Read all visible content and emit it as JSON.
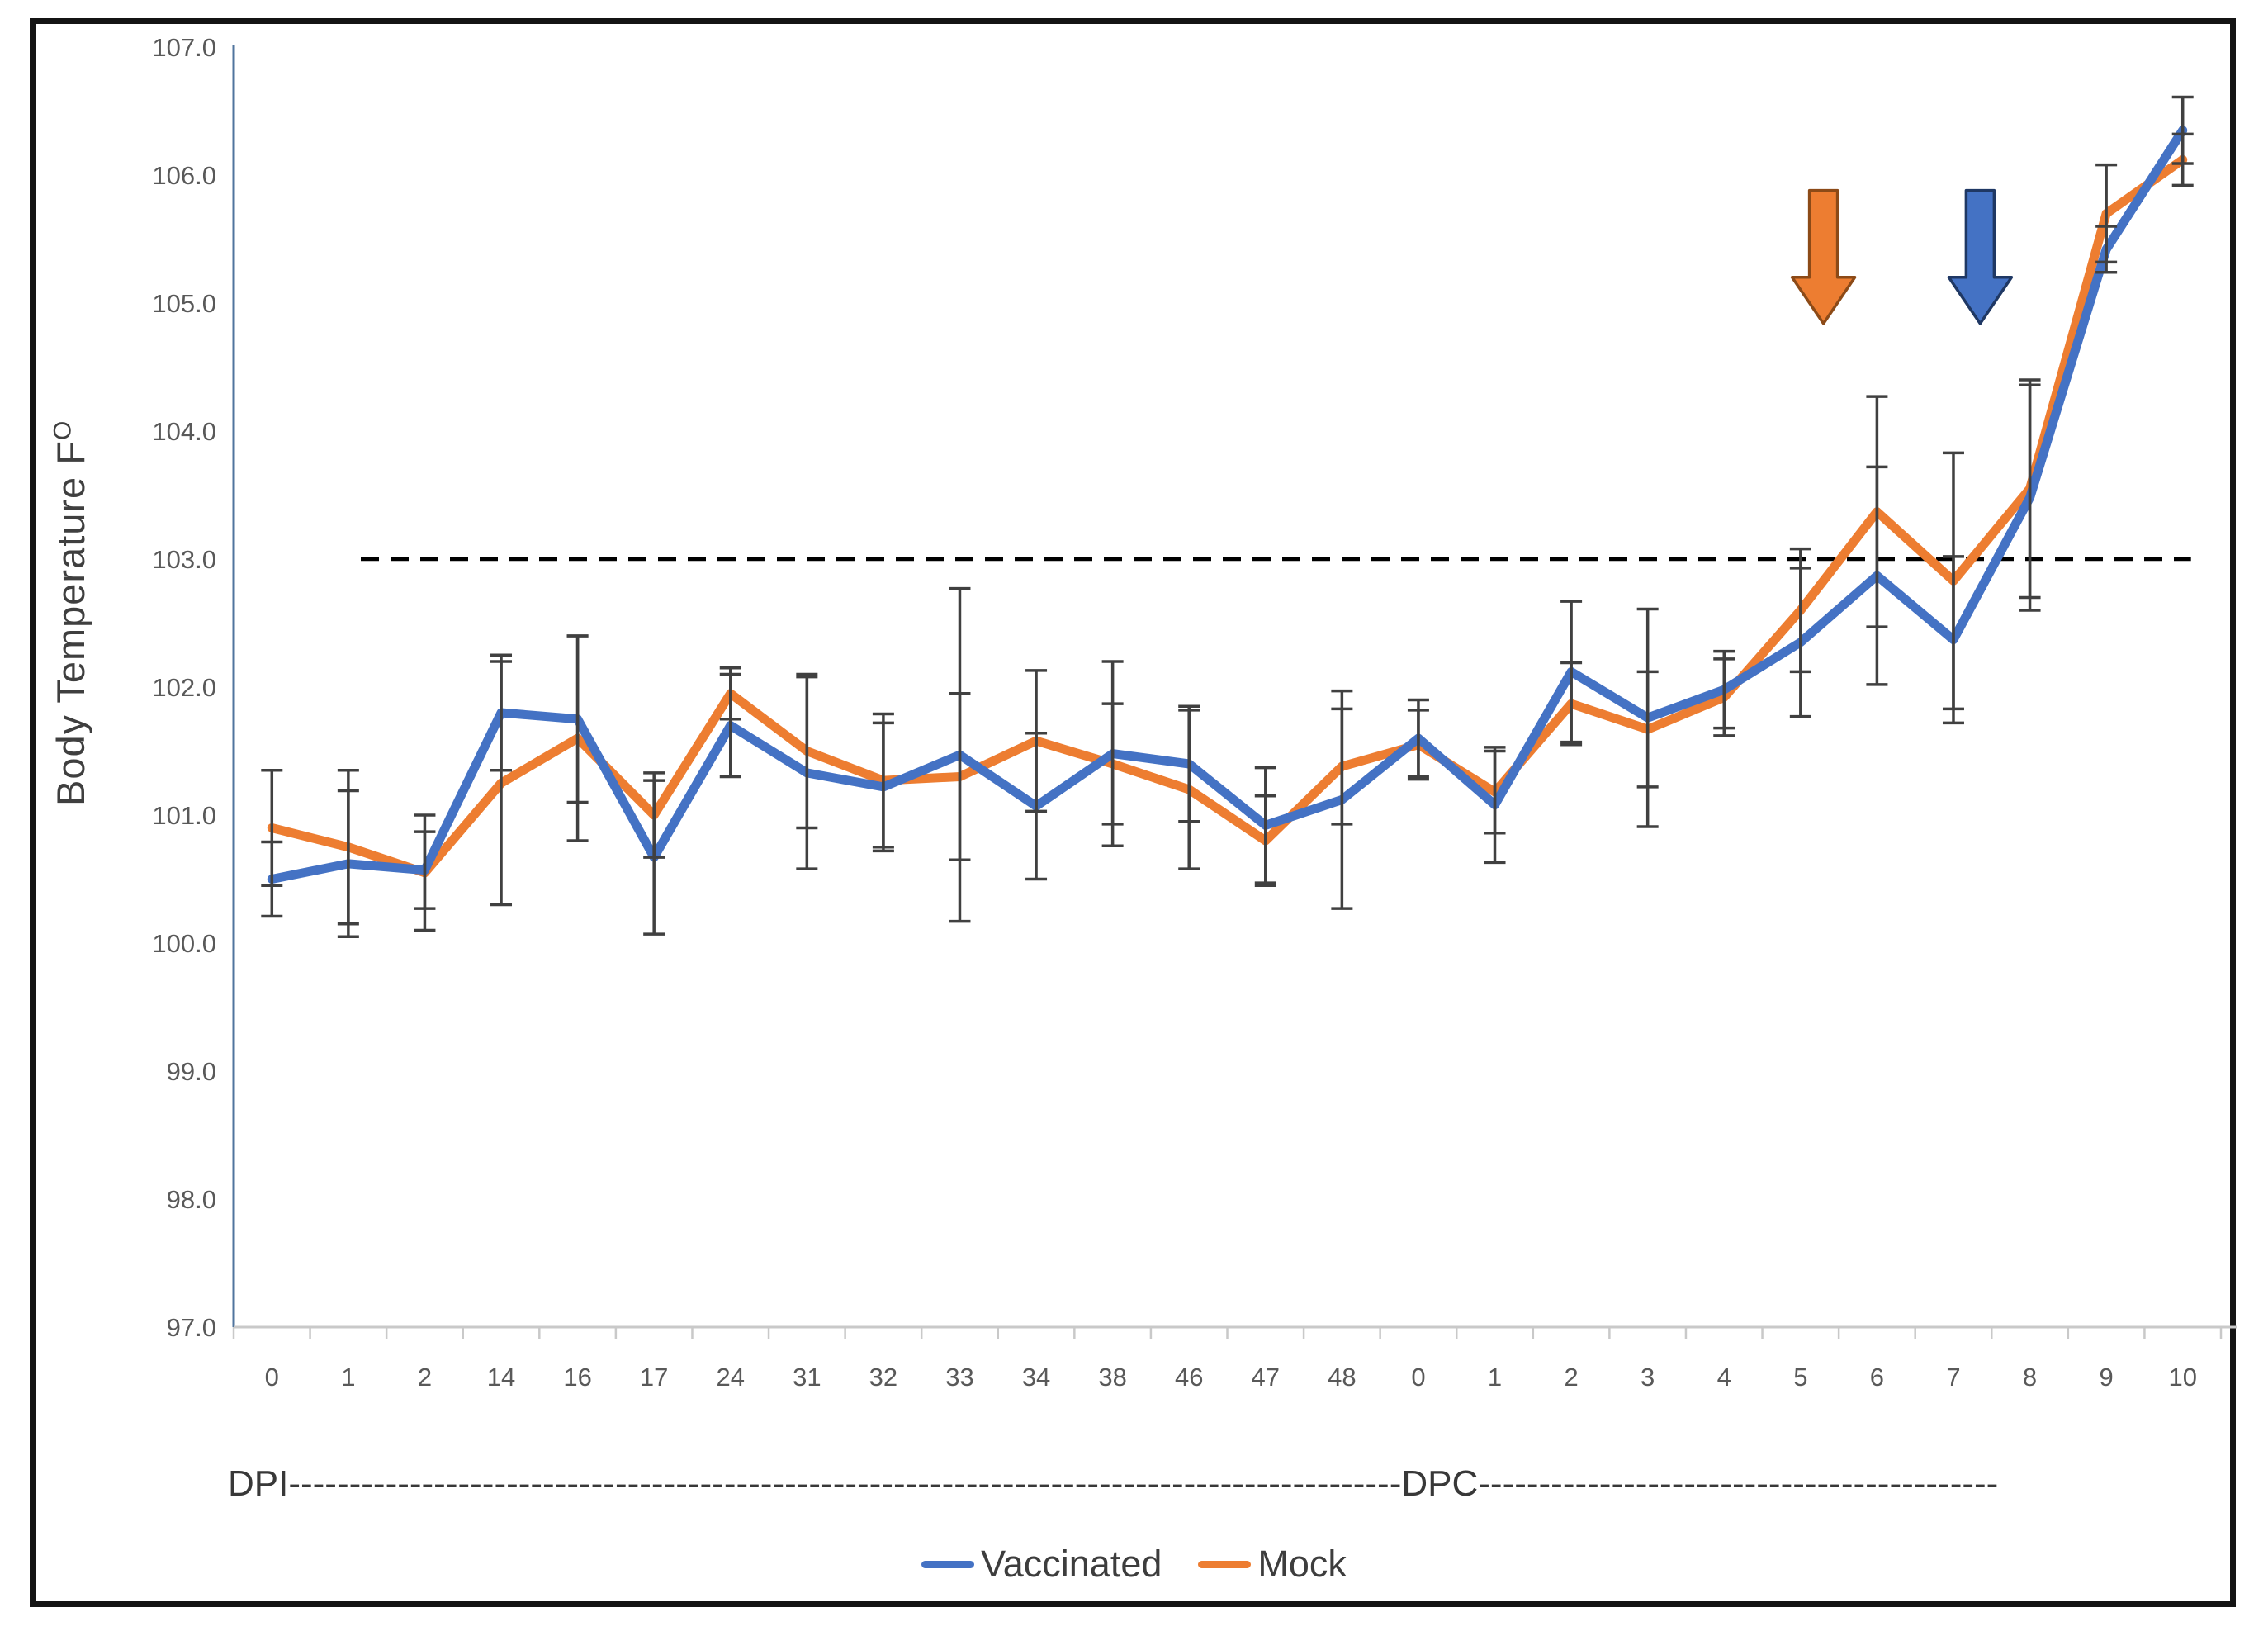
{
  "figure": {
    "background": "#ffffff",
    "border_color": "#141414"
  },
  "y_axis": {
    "title": "Body Temperature F",
    "title_superscript": "O",
    "min": 97,
    "max": 107,
    "step": 1,
    "tick_labels": [
      "97.0",
      "98.0",
      "99.0",
      "100.0",
      "101.0",
      "102.0",
      "103.0",
      "104.0",
      "105.0",
      "106.0",
      "107.0"
    ],
    "label_color": "#595959",
    "line_color": "#50749E"
  },
  "x_axis": {
    "categories": [
      "0",
      "1",
      "2",
      "14",
      "16",
      "17",
      "24",
      "31",
      "32",
      "33",
      "34",
      "38",
      "46",
      "47",
      "48",
      "0",
      "1",
      "2",
      "3",
      "4",
      "5",
      "6",
      "7",
      "8",
      "9",
      "10"
    ],
    "dpi_label": "DPI",
    "dpc_label": "DPC",
    "group_row": "DPI--------------------------------------------------------------------------------------------DPC-------------------------------------------",
    "label_color": "#595959",
    "line_color": "#C9C9C9"
  },
  "reference_line": {
    "value": 103.0,
    "color": "#000000",
    "style": "dashed"
  },
  "legend": {
    "items": [
      {
        "label": "Vaccinated",
        "color": "#4472C4"
      },
      {
        "label": "Mock",
        "color": "#ED7D31"
      }
    ]
  },
  "annotations": {
    "arrows": [
      {
        "name": "mock-fever-arrow",
        "color": "#ED7D31",
        "outline": "#8C4A17",
        "x_index": 20.3,
        "y_top_value": 105.88,
        "y_bottom_value": 104.84
      },
      {
        "name": "vaccinated-fever-arrow",
        "color": "#4472C4",
        "outline": "#1F3864",
        "x_index": 22.35,
        "y_top_value": 105.88,
        "y_bottom_value": 104.84
      }
    ]
  },
  "chart_data": {
    "type": "line",
    "title": "",
    "xlabel": "DPI / DPC",
    "ylabel": "Body Temperature F°",
    "ylim": [
      97,
      107
    ],
    "grid": false,
    "legend_position": "bottom",
    "error_bar_color": "#404040",
    "categories": [
      "0",
      "1",
      "2",
      "14",
      "16",
      "17",
      "24",
      "31",
      "32",
      "33",
      "34",
      "38",
      "46",
      "47",
      "48",
      "0",
      "1",
      "2",
      "3",
      "4",
      "5",
      "6",
      "7",
      "8",
      "9",
      "10"
    ],
    "series": [
      {
        "name": "Vaccinated",
        "color": "#4472C4",
        "values": [
          100.5,
          100.62,
          100.57,
          101.8,
          101.75,
          100.67,
          101.7,
          101.33,
          101.22,
          101.47,
          101.07,
          101.48,
          101.4,
          100.92,
          101.12,
          101.6,
          101.08,
          102.12,
          101.76,
          101.98,
          102.35,
          102.87,
          102.37,
          103.48,
          105.42,
          106.35
        ],
        "error": [
          0.29,
          0.57,
          0.3,
          0.45,
          0.65,
          0.6,
          0.4,
          0.75,
          0.5,
          1.3,
          0.57,
          0.72,
          0.45,
          0.45,
          0.85,
          0.3,
          0.45,
          0.55,
          0.85,
          0.3,
          0.58,
          0.85,
          0.65,
          0.88,
          0.18,
          0.26
        ]
      },
      {
        "name": "Mock",
        "color": "#ED7D31",
        "values": [
          100.9,
          100.75,
          100.55,
          101.25,
          101.6,
          101.0,
          101.95,
          101.5,
          101.27,
          101.3,
          101.58,
          101.4,
          101.2,
          100.8,
          101.38,
          101.55,
          101.18,
          101.87,
          101.67,
          101.92,
          102.6,
          103.37,
          102.83,
          103.55,
          105.7,
          106.12
        ],
        "error": [
          0.45,
          0.6,
          0.45,
          0.95,
          0.8,
          0.33,
          0.2,
          0.6,
          0.52,
          0.65,
          0.55,
          0.47,
          0.62,
          0.35,
          0.45,
          0.27,
          0.32,
          0.32,
          0.45,
          0.3,
          0.48,
          0.9,
          1.0,
          0.85,
          0.38,
          0.2
        ]
      }
    ],
    "reference_line": 103.0
  }
}
